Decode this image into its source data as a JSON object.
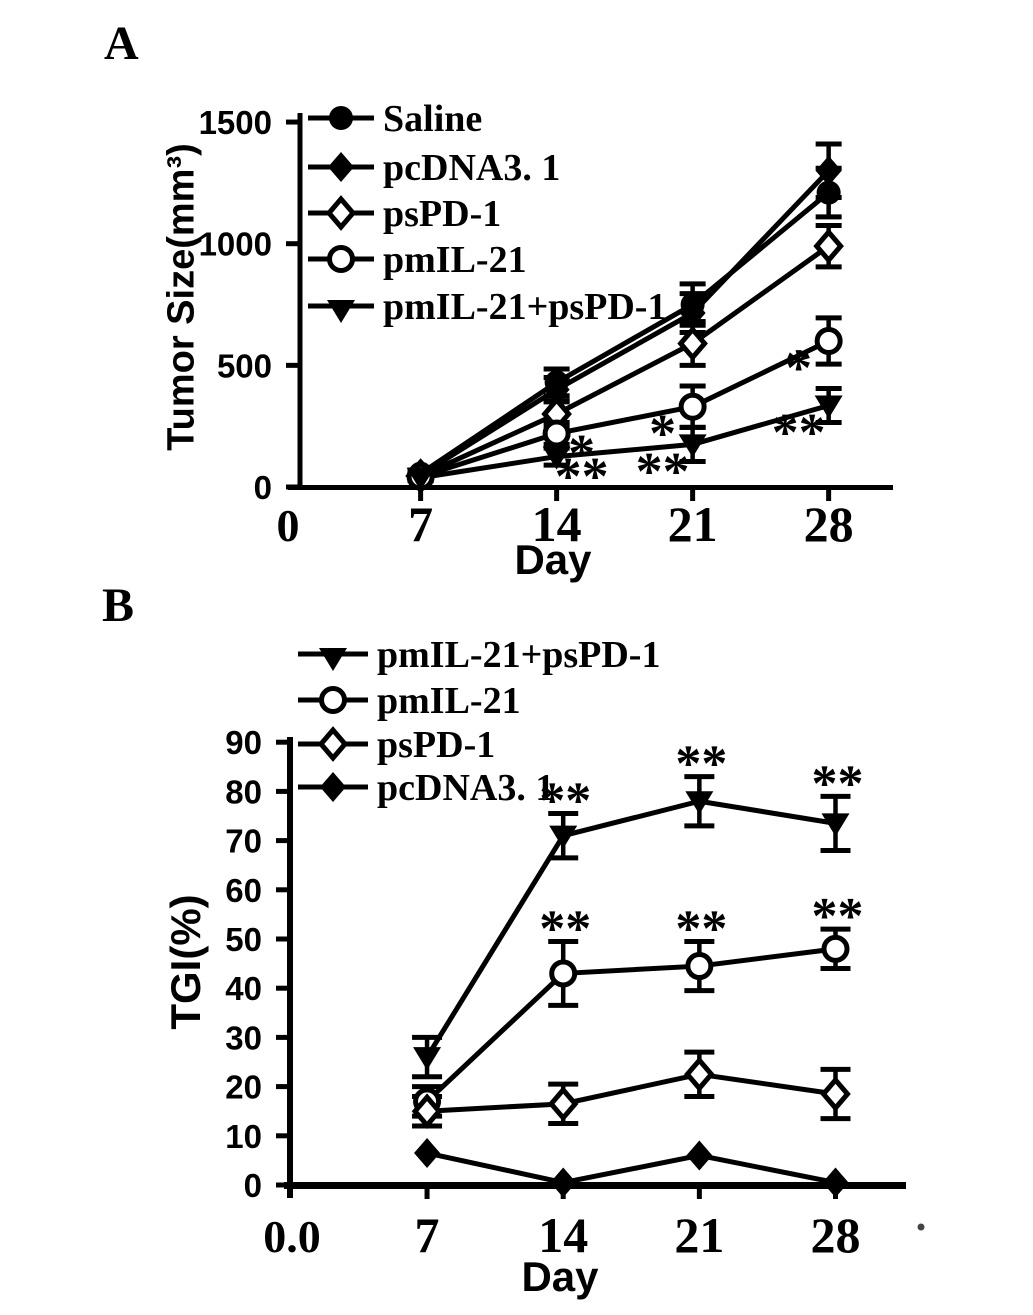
{
  "labels": {
    "panel_a": "A",
    "panel_b": "B"
  },
  "chart_data": [
    {
      "panel": "A",
      "type": "line",
      "title": "",
      "xlabel": "Day",
      "ylabel": "Tumor Size(mm³)",
      "x_values": [
        7,
        14,
        21,
        28
      ],
      "x_tick_labels": [
        "7",
        "14",
        "21",
        "28"
      ],
      "x_origin_label": "0",
      "y_tick_values": [
        0,
        500,
        1000,
        1500
      ],
      "y_tick_labels": [
        "0",
        "500",
        "1000",
        "1500"
      ],
      "xlim": [
        0,
        31
      ],
      "ylim": [
        0,
        1500
      ],
      "grid": false,
      "legend_position": "inside-top-left",
      "series": [
        {
          "name": "Saline",
          "marker": "filled-circle",
          "values": [
            55,
            430,
            750,
            1210
          ],
          "errors": [
            15,
            55,
            85,
            100
          ],
          "sig": [
            "",
            "",
            "",
            ""
          ],
          "sig_side": [
            "",
            "",
            "",
            ""
          ]
        },
        {
          "name": "pcDNA3. 1",
          "marker": "filled-diamond",
          "values": [
            50,
            400,
            715,
            1300
          ],
          "errors": [
            15,
            50,
            80,
            110
          ],
          "sig": [
            "",
            "",
            "",
            ""
          ],
          "sig_side": [
            "",
            "",
            "",
            ""
          ]
        },
        {
          "name": "psPD-1",
          "marker": "open-diamond",
          "values": [
            45,
            300,
            590,
            990
          ],
          "errors": [
            15,
            55,
            90,
            85
          ],
          "sig": [
            "",
            "",
            "",
            ""
          ],
          "sig_side": [
            "",
            "",
            "",
            ""
          ]
        },
        {
          "name": "pmIL-21",
          "marker": "open-circle",
          "values": [
            42,
            220,
            330,
            600
          ],
          "errors": [
            15,
            45,
            85,
            95
          ],
          "sig": [
            "",
            "*",
            "*",
            "*"
          ],
          "sig_side": [
            "",
            "right",
            "left",
            "left"
          ]
        },
        {
          "name": "pmIL-21+psPD-1",
          "marker": "filled-triangle-down",
          "values": [
            38,
            125,
            175,
            335
          ],
          "errors": [
            12,
            35,
            70,
            70
          ],
          "sig": [
            "",
            "**",
            "**",
            "**"
          ],
          "sig_side": [
            "",
            "right",
            "left",
            "left"
          ]
        }
      ]
    },
    {
      "panel": "B",
      "type": "line",
      "title": "",
      "xlabel": "Day",
      "ylabel": "TGI(%)",
      "x_values": [
        7,
        14,
        21,
        28
      ],
      "x_tick_labels": [
        "7",
        "14",
        "21",
        "28"
      ],
      "x_origin_label": "0.0",
      "y_tick_values": [
        0,
        10,
        20,
        30,
        40,
        50,
        60,
        70,
        80,
        90
      ],
      "y_tick_labels": [
        "0",
        "10",
        "20",
        "30",
        "40",
        "50",
        "60",
        "70",
        "80",
        "90"
      ],
      "xlim": [
        0,
        31
      ],
      "ylim": [
        0,
        90
      ],
      "grid": false,
      "legend_position": "inside-top-left",
      "series": [
        {
          "name": "pmIL-21+psPD-1",
          "marker": "filled-triangle-down",
          "values": [
            26,
            71,
            78,
            73.5
          ],
          "errors": [
            4,
            4.5,
            5,
            5.5
          ],
          "sig": [
            "",
            "**",
            "**",
            "**"
          ],
          "sig_side": [
            "",
            "above",
            "above",
            "above"
          ]
        },
        {
          "name": "pmIL-21",
          "marker": "open-circle",
          "values": [
            17,
            43,
            44.5,
            48
          ],
          "errors": [
            3,
            6.5,
            5,
            4
          ],
          "sig": [
            "",
            "**",
            "**",
            "**"
          ],
          "sig_side": [
            "",
            "above",
            "above",
            "above"
          ]
        },
        {
          "name": "psPD-1",
          "marker": "open-diamond",
          "values": [
            15,
            16.5,
            22.5,
            18.5
          ],
          "errors": [
            3,
            4,
            4.5,
            5
          ],
          "sig": [
            "",
            "",
            "",
            ""
          ],
          "sig_side": [
            "",
            "",
            "",
            ""
          ]
        },
        {
          "name": "pcDNA3. 1",
          "marker": "filled-diamond",
          "values": [
            6.5,
            0.5,
            6,
            0.5
          ],
          "errors": [
            0,
            0,
            0,
            0
          ],
          "sig": [
            "",
            "",
            "",
            ""
          ],
          "sig_side": [
            "",
            "",
            "",
            ""
          ]
        }
      ]
    }
  ]
}
